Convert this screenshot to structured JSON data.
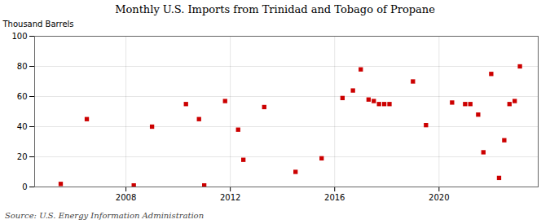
{
  "chart_data": {
    "type": "scatter",
    "title": "Monthly U.S. Imports from Trinidad and Tobago of Propane",
    "ylabel": "Thousand Barrels",
    "source": "Source: U.S. Energy Information Administration",
    "x": [
      2005.5,
      2006.5,
      2008.3,
      2009.0,
      2010.3,
      2010.8,
      2011.0,
      2011.8,
      2012.3,
      2012.5,
      2013.3,
      2014.5,
      2015.5,
      2016.3,
      2016.7,
      2017.0,
      2017.3,
      2017.5,
      2017.7,
      2017.9,
      2018.1,
      2019.0,
      2019.5,
      2020.5,
      2021.0,
      2021.2,
      2021.5,
      2021.7,
      2022.0,
      2022.3,
      2022.5,
      2022.7,
      2022.9,
      2023.1
    ],
    "values": [
      2,
      45,
      1,
      40,
      55,
      45,
      1,
      57,
      38,
      18,
      53,
      10,
      19,
      59,
      64,
      78,
      58,
      57,
      55,
      55,
      55,
      70,
      41,
      56,
      55,
      55,
      48,
      23,
      75,
      6,
      31,
      55,
      57,
      80
    ],
    "color": "#cc0000",
    "marker": "square",
    "xlim": [
      2004.5,
      2023.8
    ],
    "ylim": [
      0,
      100
    ],
    "xticks": [
      2008,
      2012,
      2016,
      2020
    ],
    "yticks": [
      0,
      20,
      40,
      60,
      80,
      100
    ],
    "grid": true
  }
}
